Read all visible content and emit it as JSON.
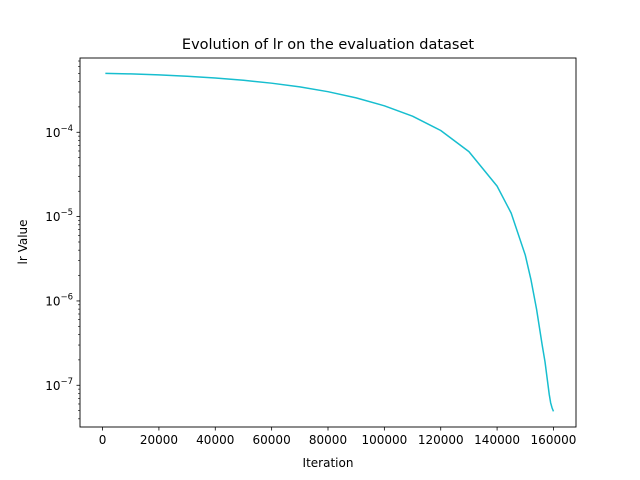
{
  "chart_data": {
    "type": "line",
    "title": "Evolution of lr on the evaluation dataset",
    "xlabel": "Iteration",
    "ylabel": "lr Value",
    "yscale": "log",
    "xlim": [
      -8000,
      168000
    ],
    "ylim": [
      3.2e-08,
      0.00076
    ],
    "grid": false,
    "x_ticks": [
      0,
      20000,
      40000,
      60000,
      80000,
      100000,
      120000,
      140000,
      160000
    ],
    "x_tick_labels": [
      "0",
      "20000",
      "40000",
      "60000",
      "80000",
      "100000",
      "120000",
      "140000",
      "160000"
    ],
    "y_ticks": [
      1e-07,
      1e-06,
      1e-05,
      0.0001
    ],
    "y_tick_labels": [
      {
        "base": "10",
        "exp": "−7"
      },
      {
        "base": "10",
        "exp": "−6"
      },
      {
        "base": "10",
        "exp": "−5"
      },
      {
        "base": "10",
        "exp": "−4"
      }
    ],
    "series": [
      {
        "color": "#17becf",
        "x": [
          1000,
          10000,
          20000,
          30000,
          40000,
          50000,
          60000,
          70000,
          80000,
          90000,
          100000,
          110000,
          120000,
          130000,
          140000,
          145000,
          150000,
          152000,
          154000,
          156000,
          157000,
          158000,
          158500,
          159000,
          159500,
          160000
        ],
        "y": [
          0.0005,
          0.000492,
          0.000479,
          0.000462,
          0.00044,
          0.000414,
          0.000382,
          0.000345,
          0.000303,
          0.000256,
          0.000206,
          0.000155,
          0.000105,
          5.9e-05,
          2.3e-05,
          1.1e-05,
          3.5e-06,
          1.8e-06,
          8e-07,
          3e-07,
          1.9e-07,
          1.05e-07,
          7.8e-08,
          6.2e-08,
          5.4e-08,
          4.9e-08
        ]
      }
    ]
  }
}
